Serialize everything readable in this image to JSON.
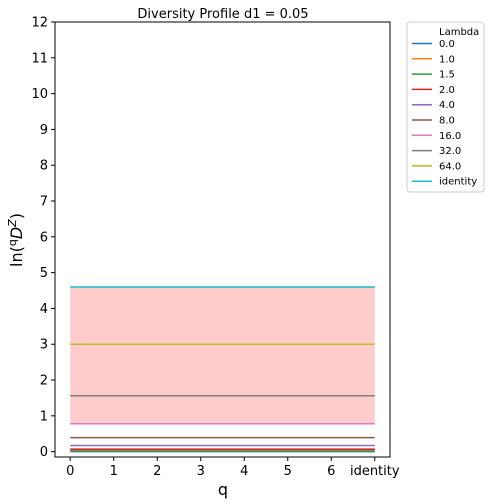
{
  "chart_data": {
    "type": "line",
    "title": "Diversity Profile d1 = 0.05",
    "xlabel": "q",
    "ylabel": "ln(qDZ)",
    "x_ticks": [
      "0",
      "1",
      "2",
      "3",
      "4",
      "5",
      "6",
      "identity"
    ],
    "x": [
      0,
      1,
      2,
      3,
      4,
      5,
      6,
      7
    ],
    "xlim": [
      -0.35,
      7.35
    ],
    "ylim": [
      -0.15,
      12
    ],
    "y_ticks": [
      0,
      1,
      2,
      3,
      4,
      5,
      6,
      7,
      8,
      9,
      10,
      11,
      12
    ],
    "legend_title": "Lambda",
    "legend_position": "outside upper right",
    "band": {
      "low": 0.78,
      "high": 4.6,
      "color": "#ffcccc"
    },
    "series": [
      {
        "name": "0.0",
        "value": 0.0,
        "color": "#1f77b4"
      },
      {
        "name": "1.0",
        "value": 0.03,
        "color": "#ff7f0e"
      },
      {
        "name": "1.5",
        "value": 0.05,
        "color": "#2ca02c"
      },
      {
        "name": "2.0",
        "value": 0.07,
        "color": "#d62728"
      },
      {
        "name": "4.0",
        "value": 0.17,
        "color": "#9467bd"
      },
      {
        "name": "8.0",
        "value": 0.39,
        "color": "#8c564b"
      },
      {
        "name": "16.0",
        "value": 0.78,
        "color": "#e377c2"
      },
      {
        "name": "32.0",
        "value": 1.56,
        "color": "#7f7f7f"
      },
      {
        "name": "64.0",
        "value": 3.0,
        "color": "#bcbd22"
      },
      {
        "name": "identity",
        "value": 4.6,
        "color": "#17becf"
      }
    ]
  }
}
